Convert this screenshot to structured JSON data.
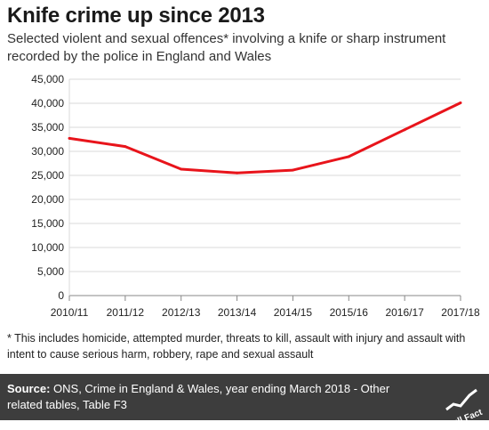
{
  "header": {
    "title": "Knife crime up since 2013",
    "subtitle": "Selected violent and sexual offences* involving a knife or sharp instrument recorded by the police in England and Wales"
  },
  "chart_data": {
    "type": "line",
    "title": "Knife crime up since 2013",
    "xlabel": "",
    "ylabel": "",
    "categories": [
      "2010/11",
      "2011/12",
      "2012/13",
      "2013/14",
      "2014/15",
      "2015/16",
      "2016/17",
      "2017/18"
    ],
    "series": [
      {
        "values": [
          32700,
          31000,
          26300,
          25500,
          26100,
          28900,
          34500,
          40100
        ],
        "color": "#e8141b"
      }
    ],
    "y_ticks": [
      "0",
      "5,000",
      "10,000",
      "15,000",
      "20,000",
      "25,000",
      "30,000",
      "35,000",
      "40,000",
      "45,000"
    ],
    "ylim": [
      0,
      45000
    ],
    "grid": "horizontal",
    "legend": "none"
  },
  "footnote": "* This includes homicide, attempted murder, threats to kill, assault with injury and assault with intent to cause serious harm, robbery, rape and sexual assault",
  "source": {
    "label": "Source:",
    "text": " ONS, Crime in England & Wales, year ending March 2018 - Other related tables, Table F3"
  },
  "logo": {
    "text": "Full Fact"
  }
}
